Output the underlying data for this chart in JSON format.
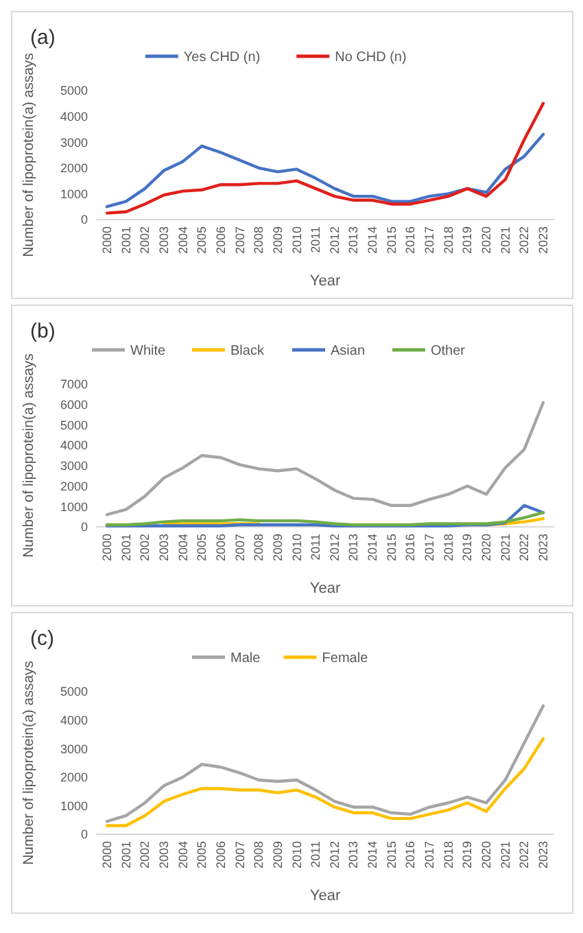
{
  "chart_data": [
    {
      "type": "line",
      "title": "(a)",
      "xlabel": "Year",
      "ylabel": "Number of lipoprotein(a) assays",
      "categories": [
        "2000",
        "2001",
        "2002",
        "2003",
        "2004",
        "2005",
        "2006",
        "2007",
        "2008",
        "2009",
        "2010",
        "2011",
        "2012",
        "2013",
        "2014",
        "2015",
        "2016",
        "2017",
        "2018",
        "2019",
        "2020",
        "2021",
        "2022",
        "2023"
      ],
      "ylim": [
        0,
        5000
      ],
      "yticks": [
        0,
        1000,
        2000,
        3000,
        4000,
        5000
      ],
      "grid": false,
      "legend": "top",
      "series": [
        {
          "name": "Yes CHD (n)",
          "color": "#4472c4",
          "values": [
            500,
            700,
            1200,
            1900,
            2250,
            2850,
            2600,
            2300,
            2000,
            1850,
            1950,
            1600,
            1200,
            900,
            900,
            700,
            700,
            900,
            1000,
            1200,
            1050,
            1950,
            2450,
            3300
          ]
        },
        {
          "name": "No CHD (n)",
          "color": "#e0201b",
          "values": [
            250,
            300,
            600,
            950,
            1100,
            1150,
            1350,
            1350,
            1400,
            1400,
            1500,
            1200,
            900,
            750,
            750,
            600,
            600,
            750,
            900,
            1200,
            900,
            1550,
            3100,
            4500
          ]
        }
      ]
    },
    {
      "type": "line",
      "title": "(b)",
      "xlabel": "Year",
      "ylabel": "Number of lipoprotein(a) assays",
      "categories": [
        "2000",
        "2001",
        "2002",
        "2003",
        "2004",
        "2005",
        "2006",
        "2007",
        "2008",
        "2009",
        "2010",
        "2011",
        "2012",
        "2013",
        "2014",
        "2015",
        "2016",
        "2017",
        "2018",
        "2019",
        "2020",
        "2021",
        "2022",
        "2023"
      ],
      "ylim": [
        0,
        7000
      ],
      "yticks": [
        0,
        1000,
        2000,
        3000,
        4000,
        5000,
        6000,
        7000
      ],
      "grid": false,
      "legend": "top",
      "series": [
        {
          "name": "White",
          "color": "#a5a5a5",
          "values": [
            600,
            850,
            1500,
            2400,
            2900,
            3500,
            3400,
            3050,
            2850,
            2750,
            2850,
            2350,
            1800,
            1400,
            1350,
            1050,
            1050,
            1350,
            1600,
            2000,
            1600,
            2900,
            3800,
            6100
          ]
        },
        {
          "name": "Black",
          "color": "#ffc000",
          "values": [
            null,
            null,
            null,
            150,
            150,
            150,
            150,
            150,
            150,
            null,
            null,
            null,
            null,
            null,
            null,
            null,
            null,
            null,
            null,
            null,
            100,
            150,
            250,
            400
          ]
        },
        {
          "name": "Asian",
          "color": "#4472c4",
          "values": [
            50,
            50,
            50,
            50,
            50,
            50,
            50,
            100,
            100,
            100,
            100,
            100,
            50,
            50,
            50,
            50,
            50,
            50,
            50,
            100,
            100,
            200,
            1050,
            700
          ]
        },
        {
          "name": "Other",
          "color": "#70ad47",
          "values": [
            100,
            100,
            150,
            250,
            300,
            300,
            300,
            350,
            300,
            300,
            300,
            250,
            150,
            100,
            100,
            100,
            100,
            150,
            150,
            150,
            150,
            250,
            450,
            700
          ]
        }
      ]
    },
    {
      "type": "line",
      "title": "(c)",
      "xlabel": "Year",
      "ylabel": "Number of lipoprotein(a) assays",
      "categories": [
        "2000",
        "2001",
        "2002",
        "2003",
        "2004",
        "2005",
        "2006",
        "2007",
        "2008",
        "2009",
        "2010",
        "2011",
        "2012",
        "2013",
        "2014",
        "2015",
        "2016",
        "2017",
        "2018",
        "2019",
        "2020",
        "2021",
        "2022",
        "2023"
      ],
      "ylim": [
        0,
        5000
      ],
      "yticks": [
        0,
        1000,
        2000,
        3000,
        4000,
        5000
      ],
      "grid": false,
      "legend": "top",
      "series": [
        {
          "name": "Male",
          "color": "#a5a5a5",
          "values": [
            450,
            650,
            1100,
            1700,
            2000,
            2450,
            2350,
            2150,
            1900,
            1850,
            1900,
            1550,
            1150,
            950,
            950,
            750,
            700,
            950,
            1100,
            1300,
            1100,
            1900,
            3200,
            4500
          ]
        },
        {
          "name": "Female",
          "color": "#ffc000",
          "values": [
            300,
            300,
            650,
            1150,
            1400,
            1600,
            1600,
            1550,
            1550,
            1450,
            1550,
            1300,
            950,
            750,
            750,
            550,
            550,
            700,
            850,
            1100,
            800,
            1600,
            2300,
            3350
          ]
        }
      ]
    }
  ]
}
